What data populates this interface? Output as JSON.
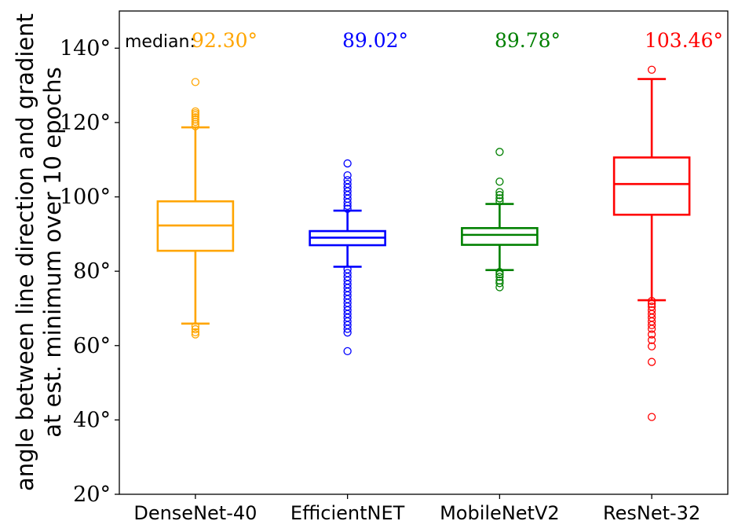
{
  "chart_data": {
    "type": "boxplot",
    "title": "",
    "xlabel": "",
    "ylabel_lines": [
      "angle between line direction and gradient",
      "at est. minimum over 10 epochs"
    ],
    "ylim": [
      20,
      150
    ],
    "yticks": [
      20,
      40,
      60,
      80,
      100,
      120,
      140
    ],
    "ytick_labels": [
      "20°",
      "40°",
      "60°",
      "80°",
      "100°",
      "120°",
      "140°"
    ],
    "grid": false,
    "median_prefix": "median:",
    "categories": [
      "DenseNet-40",
      "EfficientNET",
      "MobileNetV2",
      "ResNet-32"
    ],
    "series": [
      {
        "category": "DenseNet-40",
        "color": "#ffa500",
        "median": 92.3,
        "median_label": "92.30°",
        "q1": 85.5,
        "q3": 98.8,
        "whisker_low": 65.9,
        "whisker_high": 118.7,
        "outliers": [
          63.0,
          63.6,
          64.4,
          65.2,
          119.0,
          119.6,
          120.2,
          120.8,
          121.4,
          122.0,
          122.5,
          123.0,
          130.9
        ]
      },
      {
        "category": "EfficientNET",
        "color": "#0000ff",
        "median": 89.02,
        "median_label": "89.02°",
        "q1": 87.0,
        "q3": 90.8,
        "whisker_low": 81.2,
        "whisker_high": 96.3,
        "outliers": [
          58.5,
          63.5,
          64.5,
          65.5,
          66.5,
          67.5,
          68.5,
          69.5,
          70.5,
          71.5,
          72.5,
          73.5,
          74.5,
          75.5,
          76.5,
          77.5,
          78.5,
          79.5,
          80.5,
          96.8,
          97.6,
          98.5,
          99.5,
          100.5,
          101.5,
          102.5,
          103.5,
          104.5,
          105.8,
          109.0
        ]
      },
      {
        "category": "MobileNetV2",
        "color": "#008000",
        "median": 89.78,
        "median_label": "89.78°",
        "q1": 87.1,
        "q3": 91.6,
        "whisker_low": 80.3,
        "whisker_high": 98.1,
        "outliers": [
          75.7,
          76.8,
          77.5,
          78.5,
          79.2,
          79.8,
          98.8,
          99.6,
          100.5,
          101.3,
          104.1,
          112.1
        ]
      },
      {
        "category": "ResNet-32",
        "color": "#ff0000",
        "median": 103.46,
        "median_label": "103.46°",
        "q1": 95.2,
        "q3": 110.6,
        "whisker_low": 72.2,
        "whisker_high": 131.7,
        "outliers": [
          40.8,
          55.6,
          59.8,
          61.5,
          63.0,
          64.5,
          65.5,
          66.5,
          67.5,
          68.5,
          69.5,
          70.5,
          71.2,
          72.0,
          134.2
        ]
      }
    ]
  }
}
